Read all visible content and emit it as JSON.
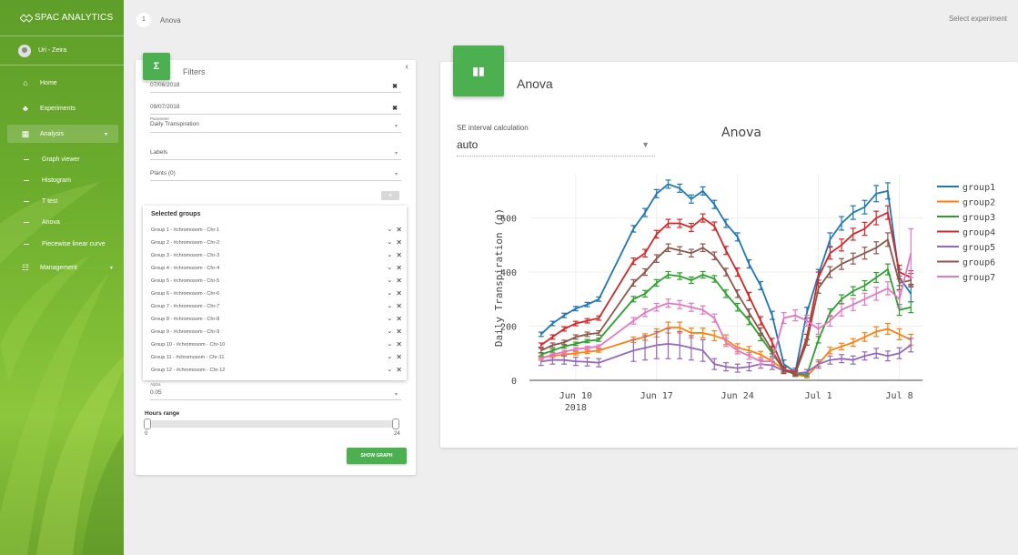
{
  "sidebar": {
    "brand": "SPAC ANALYTICS",
    "user": "Uri - Zeira",
    "items": [
      {
        "label": "Home",
        "icon": "home-icon"
      },
      {
        "label": "Experiments",
        "icon": "experiments-icon"
      },
      {
        "label": "Analysis",
        "icon": "analysis-icon"
      },
      {
        "label": "Graph viewer"
      },
      {
        "label": "Histogram"
      },
      {
        "label": "T test"
      },
      {
        "label": "Anova"
      },
      {
        "label": "Piecewise linear curve"
      },
      {
        "label": "Management",
        "icon": "management-icon"
      }
    ]
  },
  "header": {
    "step": "1",
    "title": "Anova",
    "select_experiment": "Select experiment"
  },
  "filters": {
    "title": "Filters",
    "collapse": "‹",
    "start_date": "07/06/2018",
    "end_date": "09/07/2018",
    "parameter_label": "Parameter",
    "parameter_value": "Daily Transpiration",
    "labels_value": "Labels",
    "plants_value": "Plants (0)",
    "add_label": "+",
    "selected_groups_title": "Selected groups",
    "groups": [
      "Group 1 - #chromosom - Chr-1",
      "Group 2 - #chromosom - Chr-2",
      "Group 3 - #chromosom - Chr-3",
      "Group 4 - #chromosom - Chr-4",
      "Group 5 - #chromosom - Chr-5",
      "Group 6 - #chromosom - Chr-6",
      "Group 7 - #chromosom - Chr-7",
      "Group 8 - #chromosom - Chr-8",
      "Group 9 - #chromosom - Chr-9",
      "Group 10 - #chromosom - Chr-10",
      "Group 11 - #chromosom - Chr-11",
      "Group 12 - #chromosom - Chr-12"
    ],
    "alpha_label": "Alpha",
    "alpha_value": "0.05",
    "hours_label": "Hours range",
    "hours_min": "0",
    "hours_max": "24",
    "show_button": "SHOW GRAPH"
  },
  "anova": {
    "title": "Anova",
    "se_label": "SE interval calculation",
    "se_value": "auto"
  },
  "chart_data": {
    "type": "line",
    "title": "Anova",
    "ylabel": "Daily Transpiration (g)",
    "xlabel": "",
    "x_ticks": [
      {
        "date": "2018-06-10",
        "label": "Jun 10",
        "sublabel": "2018"
      },
      {
        "date": "2018-06-17",
        "label": "Jun 17"
      },
      {
        "date": "2018-06-24",
        "label": "Jun 24"
      },
      {
        "date": "2018-07-01",
        "label": "Jul 1"
      },
      {
        "date": "2018-07-08",
        "label": "Jul 8"
      }
    ],
    "y_ticks": [
      0,
      200,
      400,
      600
    ],
    "ylim": [
      0,
      760
    ],
    "xlim": [
      "2018-06-06",
      "2018-07-10"
    ],
    "legend_position": "right",
    "x": [
      "2018-06-07",
      "2018-06-08",
      "2018-06-09",
      "2018-06-10",
      "2018-06-11",
      "2018-06-12",
      "2018-06-15",
      "2018-06-16",
      "2018-06-17",
      "2018-06-18",
      "2018-06-19",
      "2018-06-20",
      "2018-06-21",
      "2018-06-22",
      "2018-06-23",
      "2018-06-24",
      "2018-06-25",
      "2018-06-26",
      "2018-06-27",
      "2018-06-28",
      "2018-06-29",
      "2018-06-30",
      "2018-07-01",
      "2018-07-02",
      "2018-07-03",
      "2018-07-04",
      "2018-07-05",
      "2018-07-06",
      "2018-07-07",
      "2018-07-08",
      "2018-07-09"
    ],
    "series": [
      {
        "name": "group1",
        "color": "#1f77b4",
        "values": [
          170,
          210,
          240,
          265,
          280,
          300,
          560,
          620,
          690,
          725,
          710,
          670,
          700,
          650,
          580,
          530,
          430,
          350,
          240,
          60,
          30,
          250,
          390,
          520,
          580,
          620,
          640,
          690,
          700,
          380,
          320
        ],
        "err": [
          8,
          8,
          8,
          8,
          8,
          8,
          12,
          15,
          15,
          15,
          15,
          15,
          15,
          15,
          15,
          15,
          15,
          15,
          15,
          15,
          15,
          20,
          20,
          25,
          25,
          25,
          25,
          30,
          30,
          30,
          30
        ]
      },
      {
        "name": "group2",
        "color": "#ff7f0e",
        "values": [
          85,
          90,
          95,
          100,
          105,
          110,
          150,
          160,
          175,
          195,
          195,
          175,
          175,
          165,
          150,
          120,
          110,
          95,
          70,
          40,
          20,
          15,
          60,
          110,
          125,
          140,
          160,
          180,
          190,
          170,
          150
        ],
        "err": [
          6,
          6,
          6,
          6,
          6,
          6,
          10,
          12,
          15,
          20,
          20,
          18,
          18,
          18,
          18,
          15,
          15,
          12,
          12,
          8,
          6,
          6,
          8,
          12,
          12,
          14,
          16,
          18,
          20,
          20,
          20
        ]
      },
      {
        "name": "group3",
        "color": "#2ca02c",
        "values": [
          95,
          110,
          125,
          135,
          145,
          150,
          300,
          320,
          360,
          390,
          385,
          370,
          390,
          375,
          320,
          270,
          220,
          160,
          100,
          40,
          25,
          20,
          150,
          250,
          300,
          330,
          350,
          380,
          410,
          260,
          270
        ],
        "err": [
          6,
          6,
          6,
          6,
          6,
          6,
          10,
          12,
          12,
          12,
          12,
          12,
          12,
          12,
          14,
          14,
          14,
          14,
          12,
          8,
          6,
          6,
          12,
          14,
          16,
          16,
          18,
          18,
          20,
          20,
          20
        ]
      },
      {
        "name": "group4",
        "color": "#d62728",
        "values": [
          130,
          160,
          190,
          210,
          220,
          230,
          440,
          470,
          540,
          580,
          580,
          565,
          600,
          570,
          480,
          400,
          310,
          220,
          140,
          40,
          30,
          160,
          380,
          470,
          500,
          540,
          560,
          600,
          620,
          400,
          380
        ],
        "err": [
          8,
          8,
          8,
          8,
          8,
          8,
          12,
          14,
          14,
          15,
          15,
          15,
          15,
          15,
          15,
          15,
          15,
          15,
          15,
          10,
          8,
          10,
          20,
          22,
          22,
          22,
          24,
          25,
          25,
          25,
          25
        ]
      },
      {
        "name": "group5",
        "color": "#9467bd",
        "values": [
          70,
          75,
          75,
          70,
          68,
          65,
          110,
          120,
          130,
          135,
          130,
          120,
          110,
          60,
          50,
          45,
          50,
          60,
          55,
          35,
          25,
          30,
          60,
          75,
          80,
          75,
          90,
          100,
          90,
          100,
          130
        ],
        "err": [
          15,
          15,
          15,
          15,
          15,
          15,
          40,
          45,
          50,
          55,
          50,
          45,
          40,
          20,
          15,
          15,
          15,
          15,
          15,
          10,
          10,
          10,
          15,
          15,
          15,
          15,
          15,
          18,
          18,
          20,
          25
        ]
      },
      {
        "name": "group6",
        "color": "#8c564b",
        "values": [
          110,
          130,
          140,
          160,
          170,
          175,
          360,
          400,
          450,
          490,
          480,
          470,
          490,
          460,
          400,
          320,
          250,
          180,
          110,
          35,
          25,
          140,
          340,
          400,
          430,
          450,
          470,
          490,
          520,
          360,
          370
        ],
        "err": [
          8,
          8,
          8,
          8,
          8,
          8,
          12,
          12,
          14,
          14,
          14,
          14,
          14,
          14,
          14,
          14,
          14,
          14,
          12,
          10,
          8,
          10,
          18,
          20,
          20,
          20,
          22,
          22,
          25,
          25,
          25
        ]
      },
      {
        "name": "group7",
        "color": "#e377c2",
        "values": [
          80,
          95,
          105,
          115,
          120,
          125,
          220,
          250,
          270,
          285,
          280,
          270,
          260,
          230,
          140,
          110,
          90,
          70,
          70,
          230,
          240,
          220,
          190,
          220,
          260,
          280,
          300,
          320,
          340,
          300,
          470
        ],
        "err": [
          6,
          6,
          6,
          6,
          6,
          6,
          12,
          14,
          14,
          15,
          15,
          15,
          15,
          15,
          15,
          12,
          12,
          12,
          12,
          20,
          20,
          20,
          20,
          20,
          22,
          22,
          22,
          24,
          24,
          30,
          90
        ]
      }
    ]
  }
}
